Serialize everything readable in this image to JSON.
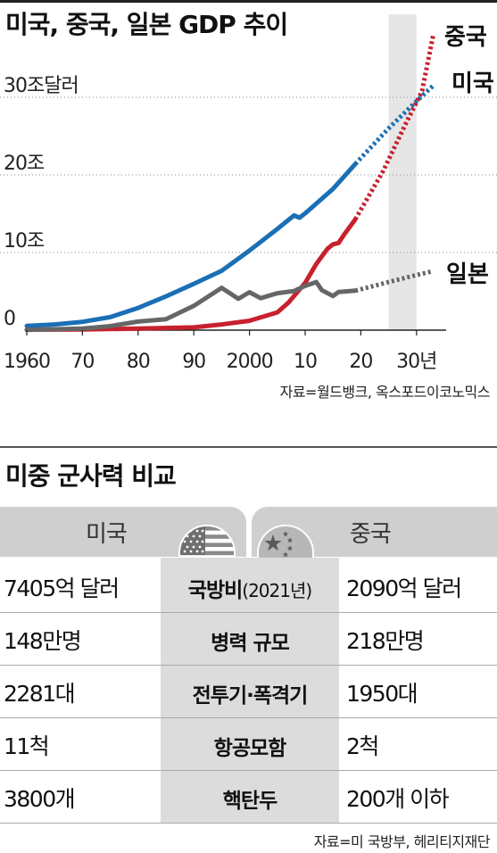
{
  "chart_title": "미국, 중국, 일본 GDP 추이",
  "chart_data": {
    "type": "line",
    "title": "미국, 중국, 일본 GDP 추이",
    "xlabel": "",
    "ylabel": "",
    "unit": "달러",
    "x_ticks": [
      "1960",
      "70",
      "80",
      "90",
      "2000",
      "10",
      "20",
      "30년"
    ],
    "x_tick_values": [
      1960,
      1970,
      1980,
      1990,
      2000,
      2010,
      2020,
      2030
    ],
    "y_ticks": [
      "0",
      "10조",
      "20조",
      "30조달러"
    ],
    "y_tick_values": [
      0,
      10,
      20,
      30
    ],
    "xlim": [
      1960,
      2034
    ],
    "ylim": [
      0,
      33
    ],
    "grid": "horizontal dotted",
    "shaded_range": [
      2025,
      2030
    ],
    "series": [
      {
        "name": "미국",
        "color": "#1b6fb5",
        "values_actual": [
          [
            1960,
            0.54
          ],
          [
            1965,
            0.74
          ],
          [
            1970,
            1.07
          ],
          [
            1975,
            1.68
          ],
          [
            1980,
            2.86
          ],
          [
            1985,
            4.34
          ],
          [
            1990,
            5.96
          ],
          [
            1995,
            7.64
          ],
          [
            2000,
            10.25
          ],
          [
            2005,
            13.04
          ],
          [
            2008,
            14.77
          ],
          [
            2009,
            14.48
          ],
          [
            2010,
            15.05
          ],
          [
            2015,
            18.2
          ],
          [
            2019,
            21.4
          ]
        ],
        "values_projected": [
          [
            2019,
            21.4
          ],
          [
            2025,
            26.0
          ],
          [
            2030,
            29.5
          ],
          [
            2033,
            31.5
          ]
        ]
      },
      {
        "name": "중국",
        "color": "#c8202d",
        "values_actual": [
          [
            1960,
            0.06
          ],
          [
            1970,
            0.09
          ],
          [
            1980,
            0.19
          ],
          [
            1990,
            0.36
          ],
          [
            1995,
            0.73
          ],
          [
            2000,
            1.21
          ],
          [
            2005,
            2.29
          ],
          [
            2007,
            3.55
          ],
          [
            2010,
            6.09
          ],
          [
            2012,
            8.53
          ],
          [
            2014,
            10.48
          ],
          [
            2015,
            11.06
          ],
          [
            2016,
            11.23
          ],
          [
            2017,
            12.31
          ],
          [
            2019,
            14.28
          ]
        ],
        "values_projected": [
          [
            2019,
            14.28
          ],
          [
            2024,
            20.5
          ],
          [
            2028,
            26.5
          ],
          [
            2031,
            30.8
          ],
          [
            2033,
            38.0
          ]
        ]
      },
      {
        "name": "일본",
        "color": "#666666",
        "values_actual": [
          [
            1960,
            0.04
          ],
          [
            1970,
            0.21
          ],
          [
            1975,
            0.52
          ],
          [
            1980,
            1.1
          ],
          [
            1985,
            1.4
          ],
          [
            1990,
            3.13
          ],
          [
            1995,
            5.45
          ],
          [
            1998,
            4.03
          ],
          [
            2000,
            4.89
          ],
          [
            2002,
            4.12
          ],
          [
            2005,
            4.76
          ],
          [
            2008,
            5.04
          ],
          [
            2010,
            5.7
          ],
          [
            2012,
            6.2
          ],
          [
            2013,
            5.15
          ],
          [
            2015,
            4.39
          ],
          [
            2016,
            4.92
          ],
          [
            2019,
            5.08
          ]
        ],
        "values_projected": [
          [
            2019,
            5.08
          ],
          [
            2025,
            6.2
          ],
          [
            2030,
            7.1
          ],
          [
            2033,
            7.6
          ]
        ]
      }
    ]
  },
  "source1": "자료=월드뱅크, 옥스포드이코노믹스",
  "table_title": "미중 군사력 비교",
  "table": {
    "us_header": "미국",
    "cn_header": "중국",
    "rows": [
      {
        "us": "7405억 달러",
        "metric": "국방비",
        "note": "(2021년)",
        "cn": "2090억 달러"
      },
      {
        "us": "148만명",
        "metric": "병력 규모",
        "note": "",
        "cn": "218만명"
      },
      {
        "us": "2281대",
        "metric": "전투기·폭격기",
        "note": "",
        "cn": "1950대"
      },
      {
        "us": "11척",
        "metric": "항공모함",
        "note": "",
        "cn": "2척"
      },
      {
        "us": "3800개",
        "metric": "핵탄두",
        "note": "",
        "cn": "200개 이하"
      }
    ]
  },
  "source2": "자료=미 국방부, 헤리티지재단",
  "colors": {
    "us": "#1b6fb5",
    "china": "#c8202d",
    "japan": "#666666",
    "header_bg": "#cfcfcf",
    "metric_bg": "#dcdcdc",
    "shade": "#e6e6e6",
    "cn_flag": "#b7b7b7"
  },
  "icons": {
    "us_flag": "us-flag-icon",
    "cn_flag": "china-flag-icon"
  }
}
